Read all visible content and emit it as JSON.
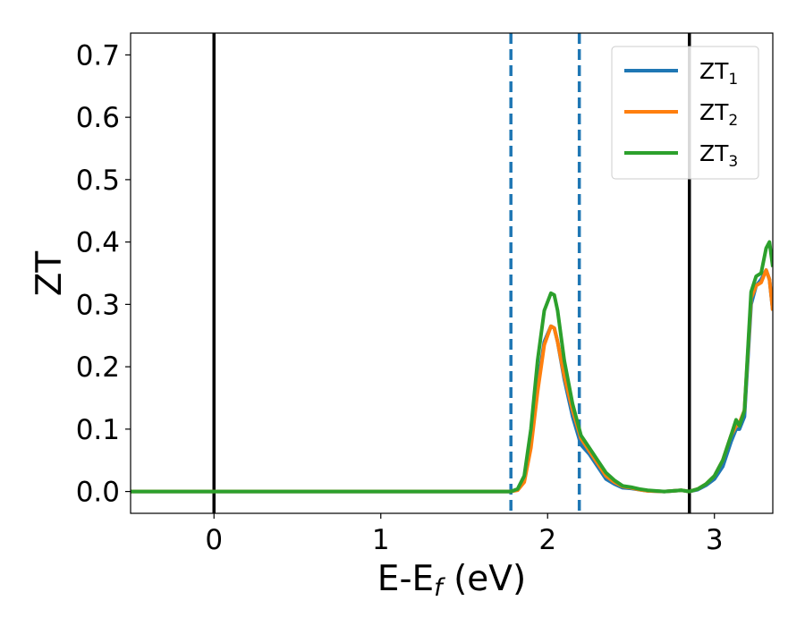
{
  "chart_data": {
    "type": "line",
    "title": "",
    "xlabel": "E-E",
    "xlabel_sub": "f",
    "xlabel_unit": " (eV)",
    "ylabel": "ZT",
    "xlim": [
      -0.5,
      3.35
    ],
    "ylim": [
      -0.035,
      0.735
    ],
    "xticks": [
      0,
      1,
      2,
      3
    ],
    "xtick_labels": [
      "0",
      "1",
      "2",
      "3"
    ],
    "yticks": [
      0.0,
      0.1,
      0.2,
      0.3,
      0.4,
      0.5,
      0.6,
      0.7
    ],
    "ytick_labels": [
      "0.0",
      "0.1",
      "0.2",
      "0.3",
      "0.4",
      "0.5",
      "0.6",
      "0.7"
    ],
    "grid": false,
    "legend_position": "top-right",
    "vlines_solid": [
      0.0,
      2.85
    ],
    "vlines_dashed": [
      1.78,
      2.19
    ],
    "vline_solid_color": "#000000",
    "vline_dashed_color": "#1f77b4",
    "series": [
      {
        "name": "ZT",
        "name_sub": "1",
        "color": "#1f77b4",
        "x": [
          -0.5,
          1.78,
          1.82,
          1.86,
          1.9,
          1.94,
          1.98,
          2.02,
          2.04,
          2.06,
          2.1,
          2.15,
          2.2,
          2.25,
          2.3,
          2.35,
          2.4,
          2.45,
          2.5,
          2.55,
          2.6,
          2.7,
          2.8,
          2.85,
          2.9,
          2.95,
          3.0,
          3.05,
          3.1,
          3.13,
          3.15,
          3.18,
          3.22,
          3.25,
          3.28,
          3.31,
          3.33,
          3.35
        ],
        "y": [
          0.0,
          0.0,
          0.003,
          0.02,
          0.08,
          0.17,
          0.24,
          0.265,
          0.262,
          0.24,
          0.18,
          0.12,
          0.075,
          0.06,
          0.04,
          0.02,
          0.012,
          0.006,
          0.005,
          0.003,
          0.001,
          0.0,
          0.002,
          0.0,
          0.003,
          0.01,
          0.02,
          0.04,
          0.08,
          0.1,
          0.1,
          0.12,
          0.3,
          0.33,
          0.34,
          0.355,
          0.34,
          0.29
        ]
      },
      {
        "name": "ZT",
        "name_sub": "2",
        "color": "#ff7f0e",
        "x": [
          -0.5,
          1.78,
          1.82,
          1.86,
          1.9,
          1.94,
          1.98,
          2.02,
          2.04,
          2.06,
          2.1,
          2.15,
          2.2,
          2.25,
          2.3,
          2.35,
          2.4,
          2.45,
          2.5,
          2.55,
          2.6,
          2.7,
          2.8,
          2.85,
          2.9,
          2.95,
          3.0,
          3.05,
          3.1,
          3.13,
          3.15,
          3.18,
          3.22,
          3.25,
          3.28,
          3.31,
          3.33,
          3.35
        ],
        "y": [
          0.0,
          0.0,
          0.002,
          0.015,
          0.07,
          0.16,
          0.235,
          0.265,
          0.262,
          0.24,
          0.185,
          0.13,
          0.085,
          0.065,
          0.045,
          0.025,
          0.015,
          0.008,
          0.006,
          0.003,
          0.001,
          0.0,
          0.002,
          0.0,
          0.004,
          0.012,
          0.025,
          0.05,
          0.09,
          0.105,
          0.11,
          0.13,
          0.31,
          0.33,
          0.335,
          0.355,
          0.34,
          0.29
        ]
      },
      {
        "name": "ZT",
        "name_sub": "3",
        "color": "#2ca02c",
        "x": [
          -0.5,
          1.78,
          1.82,
          1.86,
          1.9,
          1.94,
          1.98,
          2.02,
          2.04,
          2.06,
          2.1,
          2.15,
          2.2,
          2.25,
          2.3,
          2.35,
          2.4,
          2.45,
          2.5,
          2.55,
          2.6,
          2.7,
          2.8,
          2.85,
          2.9,
          2.95,
          3.0,
          3.05,
          3.1,
          3.13,
          3.15,
          3.18,
          3.22,
          3.25,
          3.28,
          3.31,
          3.33,
          3.35
        ],
        "y": [
          0.0,
          0.0,
          0.004,
          0.025,
          0.1,
          0.21,
          0.29,
          0.318,
          0.315,
          0.29,
          0.21,
          0.14,
          0.09,
          0.07,
          0.05,
          0.03,
          0.018,
          0.009,
          0.007,
          0.004,
          0.002,
          0.0,
          0.002,
          0.0,
          0.004,
          0.012,
          0.025,
          0.05,
          0.09,
          0.115,
          0.105,
          0.13,
          0.32,
          0.345,
          0.35,
          0.39,
          0.4,
          0.36
        ]
      }
    ]
  }
}
